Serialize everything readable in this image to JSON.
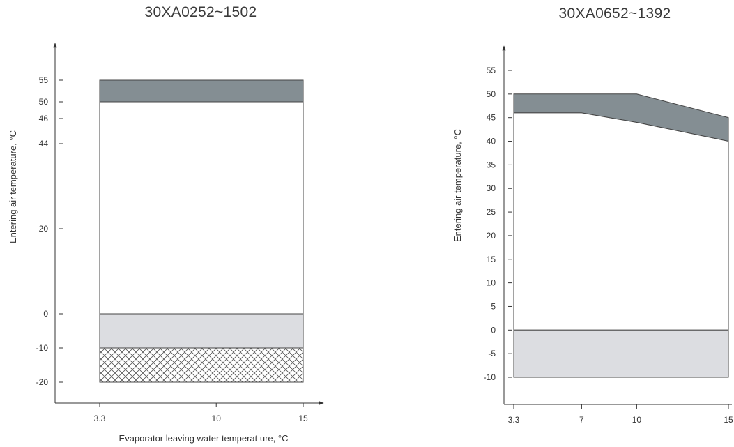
{
  "charts": {
    "left": {
      "title": "30XA0252~1502",
      "ylabel": "Entering air temperature, °C",
      "xlabel": "Evaporator leaving water temperat ure, °C"
    },
    "right": {
      "title": "30XA0652~1392",
      "ylabel": "Entering air temperature, °C"
    }
  },
  "chart_data": [
    {
      "type": "area",
      "title": "30XA0252~1502",
      "xlabel": "Evaporator leaving water temperat ure, °C",
      "ylabel": "Entering air temperature, °C",
      "x_ticks": [
        "3.3",
        "10",
        "15"
      ],
      "y_ticks": [
        "55",
        "50",
        "46",
        "44",
        "20",
        "0",
        "-10",
        "-20"
      ],
      "xlim": [
        3.3,
        15
      ],
      "ylim": [
        -20,
        55
      ],
      "regions": [
        {
          "fill": "#848e93",
          "x": [
            3.3,
            15
          ],
          "lower": [
            50,
            50
          ],
          "upper": [
            55,
            55
          ]
        },
        {
          "fill": "#ffffff",
          "x": [
            3.3,
            15
          ],
          "lower": [
            0,
            0
          ],
          "upper": [
            50,
            50
          ]
        },
        {
          "fill": "#dcdde1",
          "x": [
            3.3,
            15
          ],
          "lower": [
            -10,
            -10
          ],
          "upper": [
            0,
            0
          ]
        },
        {
          "fill": "crosshatch",
          "x": [
            3.3,
            15
          ],
          "lower": [
            -20,
            -20
          ],
          "upper": [
            -10,
            -10
          ]
        }
      ],
      "grid": false
    },
    {
      "type": "area",
      "title": "30XA0652~1392",
      "xlabel": "",
      "ylabel": "Entering air temperature, °C",
      "x_ticks": [
        "3.3",
        "7",
        "10",
        "15"
      ],
      "y_ticks": [
        "55",
        "50",
        "45",
        "40",
        "35",
        "30",
        "25",
        "20",
        "15",
        "10",
        "5",
        "0",
        "-5",
        "-10"
      ],
      "xlim": [
        3.3,
        15
      ],
      "ylim": [
        -10,
        55
      ],
      "regions": [
        {
          "fill": "#848e93",
          "x": [
            3.3,
            7,
            10,
            15
          ],
          "lower": [
            46,
            46,
            44,
            40
          ],
          "upper": [
            50,
            50,
            50,
            45
          ]
        },
        {
          "fill": "#ffffff",
          "x": [
            3.3,
            7,
            10,
            15
          ],
          "lower": [
            0,
            0,
            0,
            0
          ],
          "upper": [
            46,
            46,
            44,
            40
          ]
        },
        {
          "fill": "#dcdde1",
          "x": [
            3.3,
            15
          ],
          "lower": [
            -10,
            -10
          ],
          "upper": [
            0,
            0
          ]
        }
      ],
      "grid": false
    }
  ]
}
